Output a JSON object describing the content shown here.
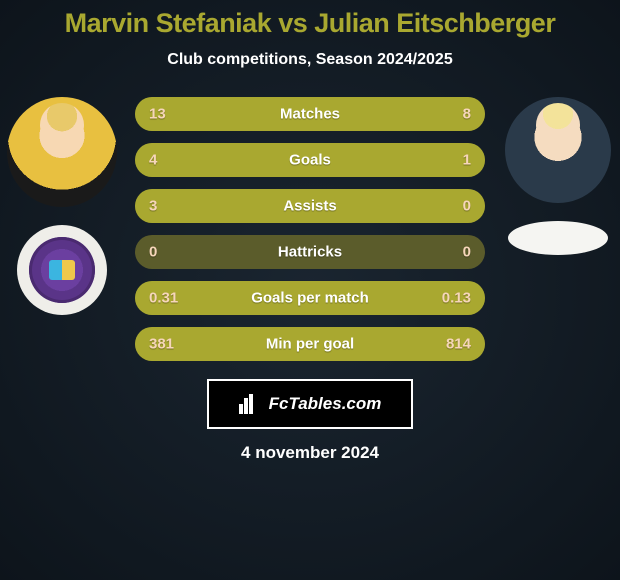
{
  "title": "Marvin Stefaniak vs Julian Eitschberger",
  "title_color": "#a9a830",
  "title_fontsize": 27,
  "subtitle": "Club competitions, Season 2024/2025",
  "subtitle_color": "#ffffff",
  "subtitle_fontsize": 16,
  "date": "4 november 2024",
  "date_color": "#ffffff",
  "date_fontsize": 17,
  "badge": {
    "label": "FcTables.com",
    "bg": "#000000",
    "border": "#ffffff",
    "text_color": "#ffffff"
  },
  "bar_style": {
    "height": 34,
    "radius": 17,
    "gap": 12,
    "track_color": "#5b5c2b",
    "left_color": "#a9a830",
    "right_color": "#a9a830",
    "label_color": "#ffffff",
    "label_fontsize": 15,
    "value_fontsize": 15,
    "left_value_color": "#f6d6ba",
    "right_value_color": "#f6d6ba"
  },
  "rows": [
    {
      "label": "Matches",
      "left": "13",
      "right": "8",
      "left_pct": 62,
      "right_pct": 38
    },
    {
      "label": "Goals",
      "left": "4",
      "right": "1",
      "left_pct": 80,
      "right_pct": 20
    },
    {
      "label": "Assists",
      "left": "3",
      "right": "0",
      "left_pct": 100,
      "right_pct": 0
    },
    {
      "label": "Hattricks",
      "left": "0",
      "right": "0",
      "left_pct": 0,
      "right_pct": 0
    },
    {
      "label": "Goals per match",
      "left": "0.31",
      "right": "0.13",
      "left_pct": 70,
      "right_pct": 30
    },
    {
      "label": "Min per goal",
      "left": "381",
      "right": "814",
      "left_pct": 32,
      "right_pct": 68
    }
  ],
  "players": {
    "left": {
      "name": "Marvin Stefaniak"
    },
    "right": {
      "name": "Julian Eitschberger"
    }
  }
}
